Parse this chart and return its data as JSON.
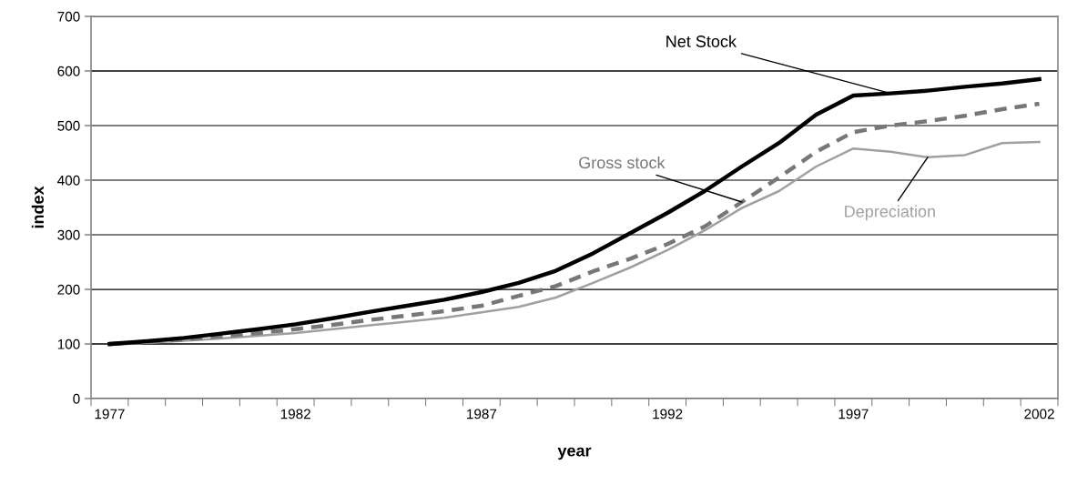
{
  "chart_data": {
    "type": "line",
    "xlabel": "year",
    "ylabel": "index",
    "categories": [
      "1977",
      null,
      null,
      null,
      null,
      "1982",
      null,
      null,
      null,
      null,
      "1987",
      null,
      null,
      null,
      null,
      "1992",
      null,
      null,
      null,
      null,
      "1997",
      null,
      null,
      null,
      null,
      "2002"
    ],
    "series": [
      {
        "name": "Net Stock",
        "color": "#000000",
        "line_style": "solid",
        "values": [
          100,
          105,
          111,
          119,
          127,
          136,
          147,
          159,
          170,
          181,
          195,
          212,
          234,
          266,
          303,
          340,
          380,
          425,
          468,
          520,
          555,
          559,
          564,
          571,
          577,
          585
        ]
      },
      {
        "name": "Gross stock",
        "color": "#777777",
        "line_style": "dashed",
        "values": [
          100,
          104,
          108,
          114,
          120,
          127,
          135,
          144,
          152,
          160,
          170,
          188,
          206,
          233,
          256,
          283,
          315,
          360,
          405,
          452,
          488,
          500,
          508,
          518,
          530,
          540
        ]
      },
      {
        "name": "Depreciation",
        "color": "#a0a0a0",
        "line_style": "solid",
        "values": [
          98,
          102,
          106,
          110,
          115,
          120,
          127,
          134,
          141,
          148,
          158,
          168,
          185,
          212,
          240,
          272,
          308,
          349,
          380,
          425,
          458,
          452,
          442,
          446,
          468,
          470
        ]
      }
    ],
    "ylim": [
      0,
      700
    ],
    "yticks": [
      0,
      100,
      200,
      300,
      400,
      500,
      600,
      700
    ],
    "grid": "y",
    "legend": false
  }
}
